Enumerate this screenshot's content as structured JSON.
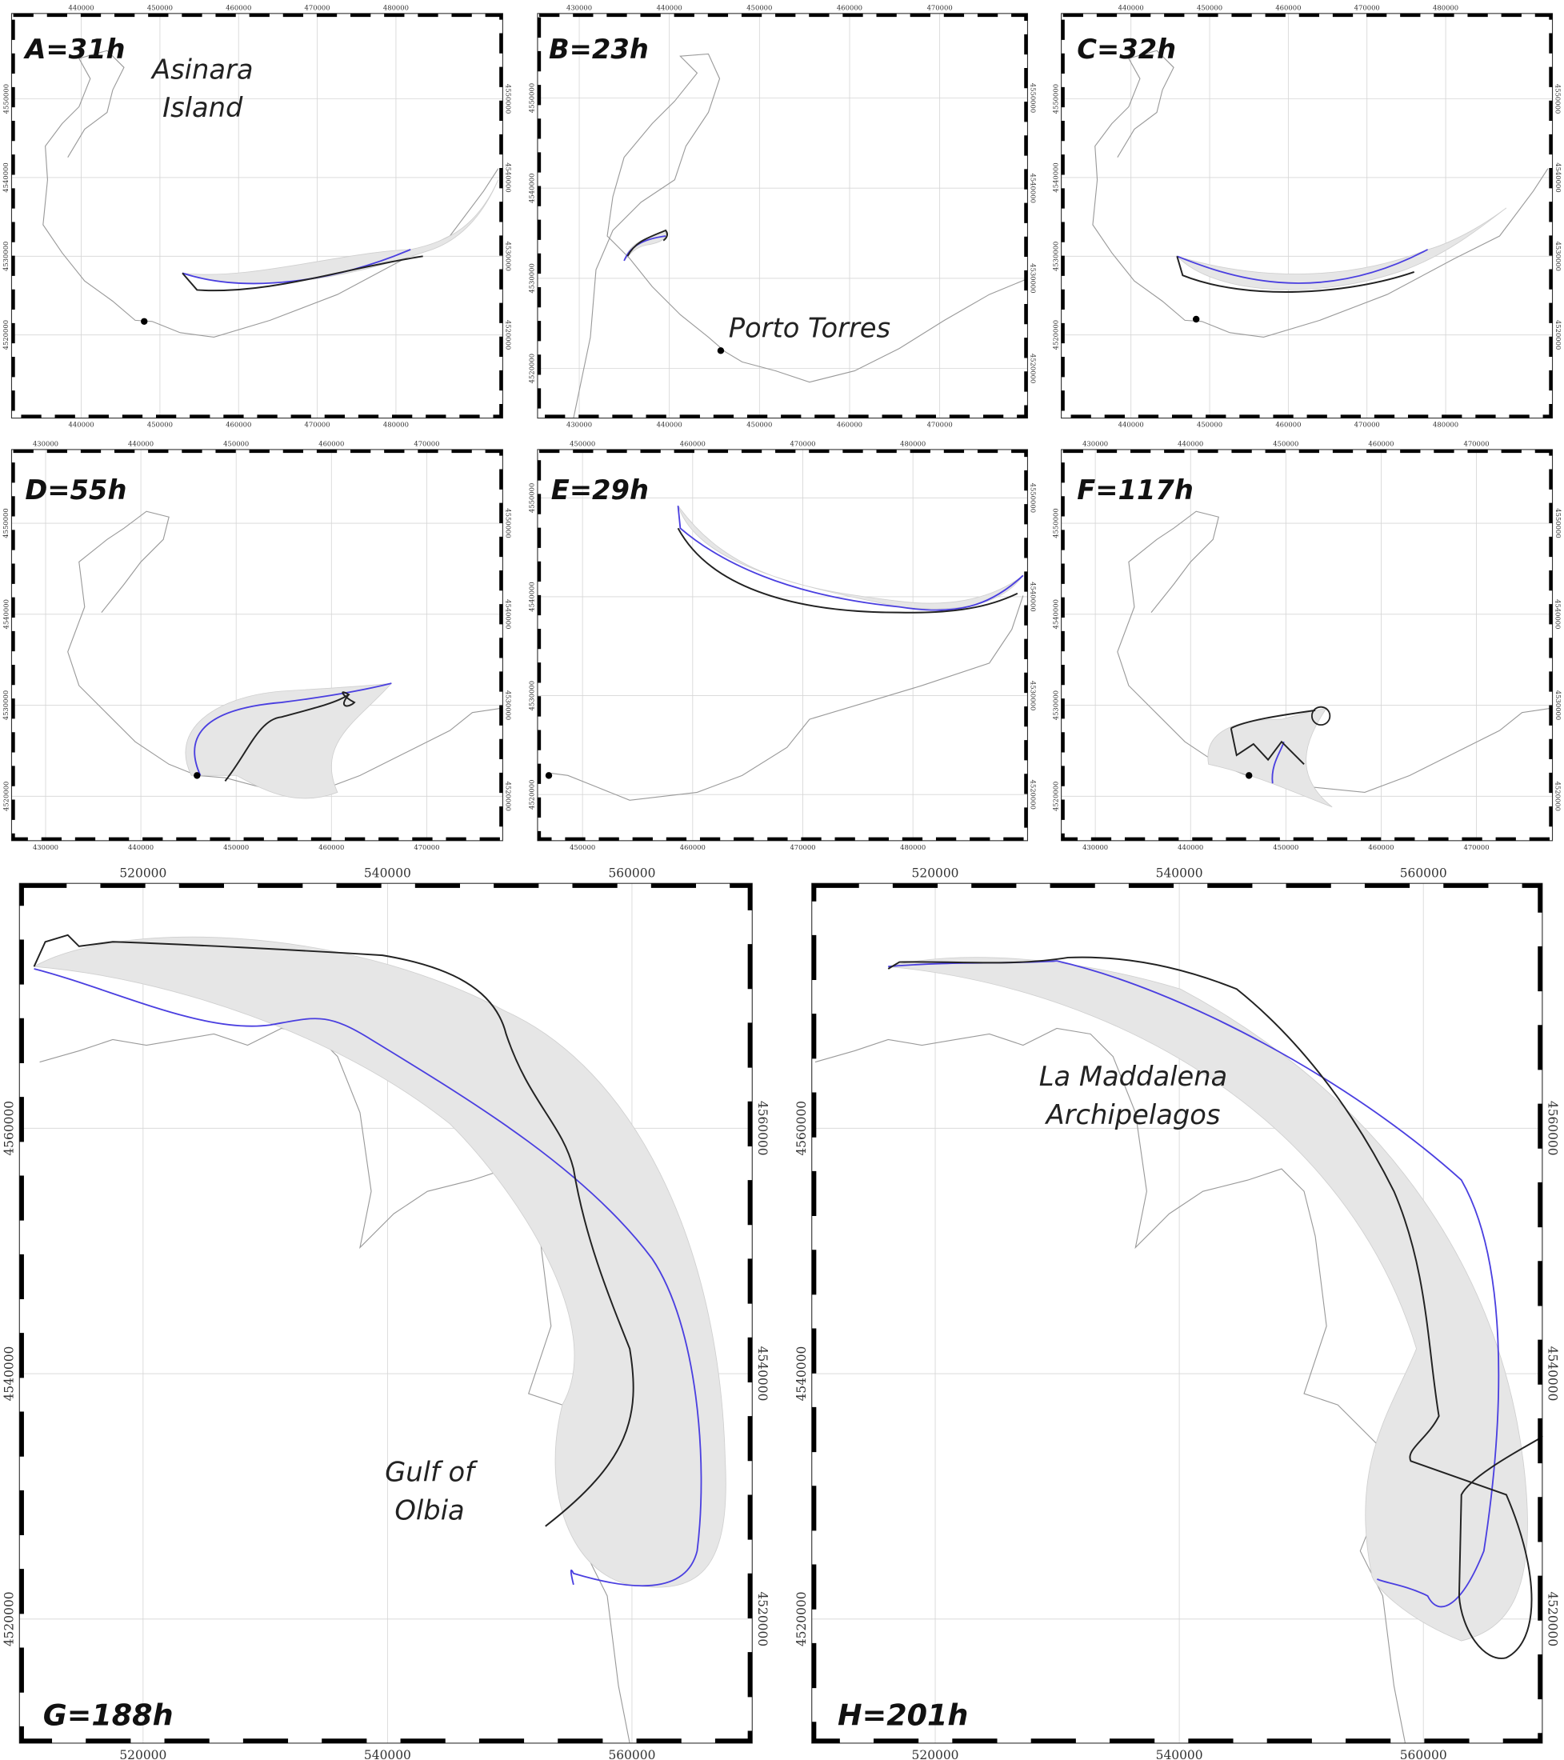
{
  "panels": [
    {
      "label": "A=31h",
      "xlim": [
        431143,
        493571
      ],
      "ylim": [
        4509429,
        4560857
      ],
      "xticks": [
        440000,
        450000,
        460000,
        470000,
        480000
      ],
      "yticks": [
        4520000,
        4530000,
        4540000,
        4550000
      ],
      "annotations": [
        {
          "lines": [
            "Asinara",
            "Island"
          ]
        }
      ]
    },
    {
      "label": "B=23h",
      "xlim": [
        425375,
        479750
      ],
      "ylim": [
        4514500,
        4559375
      ],
      "xticks": [
        430000,
        440000,
        450000,
        460000,
        470000
      ],
      "yticks": [
        4520000,
        4530000,
        4540000,
        4550000
      ],
      "annotations": [
        {
          "lines": [
            "Porto Torres"
          ]
        }
      ]
    },
    {
      "label": "C=32h",
      "xlim": [
        431143,
        493571
      ],
      "ylim": [
        4509429,
        4560857
      ],
      "xticks": [
        440000,
        450000,
        460000,
        470000,
        480000
      ],
      "yticks": [
        4520000,
        4530000,
        4540000,
        4550000
      ],
      "annotations": []
    },
    {
      "label": "D=55h",
      "xlim": [
        426430,
        477976
      ],
      "ylim": [
        4515119,
        4558095
      ],
      "xticks": [
        430000,
        440000,
        450000,
        460000,
        470000
      ],
      "yticks": [
        4520000,
        4530000,
        4540000,
        4550000
      ],
      "annotations": []
    },
    {
      "label": "E=29h",
      "xlim": [
        445918,
        490408
      ],
      "ylim": [
        4515341,
        4554886
      ],
      "xticks": [
        450000,
        460000,
        470000,
        480000
      ],
      "yticks": [
        4520000,
        4530000,
        4540000,
        4550000
      ],
      "annotations": []
    },
    {
      "label": "F=117h",
      "xlim": [
        426430,
        477976
      ],
      "ylim": [
        4515119,
        4558095
      ],
      "xticks": [
        430000,
        440000,
        450000,
        460000,
        470000
      ],
      "yticks": [
        4520000,
        4530000,
        4540000,
        4550000
      ],
      "annotations": []
    },
    {
      "label": "G=188h",
      "xlim": [
        509885,
        569839
      ],
      "ylim": [
        4509885,
        4579954
      ],
      "xticks": [
        520000,
        540000,
        560000
      ],
      "yticks": [
        4520000,
        4540000,
        4560000
      ],
      "annotations": [
        {
          "lines": [
            "Gulf of",
            "Olbia"
          ]
        }
      ]
    },
    {
      "label": "H=201h",
      "xlim": [
        509885,
        569747
      ],
      "ylim": [
        4509885,
        4579954
      ],
      "xticks": [
        520000,
        540000,
        560000
      ],
      "yticks": [
        4520000,
        4540000,
        4560000
      ],
      "annotations": [
        {
          "lines": [
            "La Maddalena",
            "Archipelagos"
          ]
        }
      ]
    }
  ]
}
